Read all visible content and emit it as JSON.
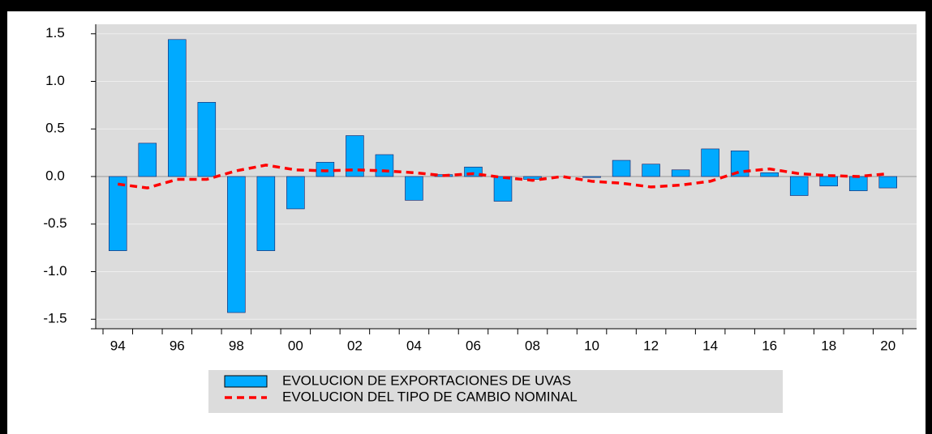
{
  "chart_data": {
    "type": "bar",
    "categories": [
      "94",
      null,
      "96",
      null,
      "98",
      null,
      "00",
      null,
      "02",
      null,
      "04",
      null,
      "06",
      null,
      "08",
      null,
      "10",
      null,
      "12",
      null,
      "14",
      null,
      "16",
      null,
      "18",
      null,
      "20"
    ],
    "series": [
      {
        "name": "EVOLUCION DE EXPORTACIONES DE UVAS",
        "type": "bar",
        "color": "#00aaff",
        "values": [
          -0.78,
          0.35,
          1.44,
          0.78,
          -1.43,
          -0.78,
          -0.34,
          0.15,
          0.43,
          0.23,
          -0.25,
          0.02,
          0.1,
          -0.26,
          -0.03,
          0.0,
          -0.01,
          0.17,
          0.13,
          0.07,
          0.29,
          0.27,
          0.04,
          -0.2,
          -0.1,
          -0.15,
          -0.12
        ]
      },
      {
        "name": "EVOLUCION DEL TIPO DE CAMBIO NOMINAL",
        "type": "line",
        "color": "#ff0000",
        "values": [
          -0.08,
          -0.12,
          -0.03,
          -0.03,
          0.06,
          0.12,
          0.07,
          0.06,
          0.07,
          0.06,
          0.04,
          0.01,
          0.03,
          -0.01,
          -0.04,
          0.0,
          -0.05,
          -0.07,
          -0.11,
          -0.09,
          -0.05,
          0.05,
          0.08,
          0.03,
          0.01,
          0.0,
          0.03
        ]
      }
    ],
    "ylim": [
      -1.6,
      1.6
    ],
    "yticks": [
      {
        "value": -1.5,
        "label": "-1.5"
      },
      {
        "value": -1.0,
        "label": "-1.0"
      },
      -0.5,
      {
        "value": 0.0,
        "label": "0.0"
      },
      0.5,
      {
        "value": 1.0,
        "label": "1.0"
      },
      1.5
    ],
    "grid": true,
    "legend": "bottom"
  }
}
